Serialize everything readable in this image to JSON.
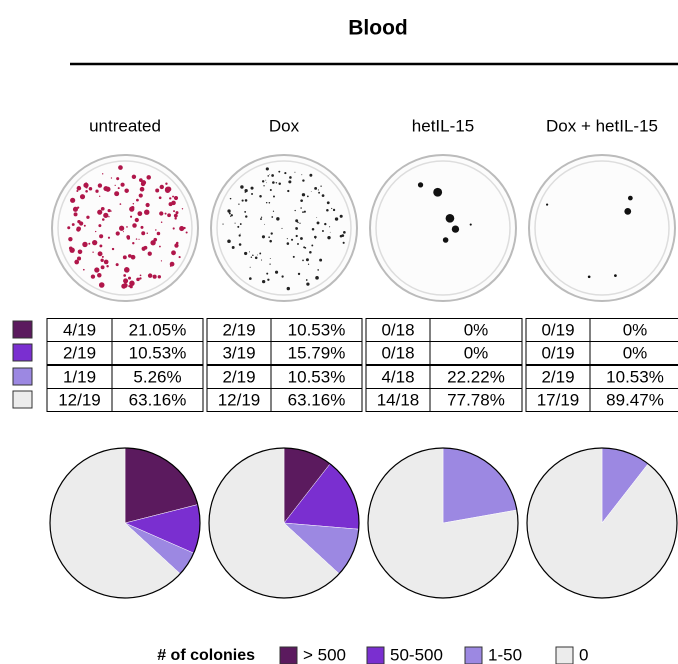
{
  "title": "Blood",
  "legend": {
    "title": "# of colonies",
    "categories": [
      "> 500",
      "50-500",
      "1-50",
      "0"
    ],
    "colors": [
      "#5b1a5e",
      "#7a2fd0",
      "#9c88e2",
      "#ececec"
    ]
  },
  "chart_data": [
    {
      "type": "pie",
      "title": "untreated",
      "counts": [
        "4/19",
        "2/19",
        "1/19",
        "12/19"
      ],
      "values": [
        21.05,
        10.53,
        5.26,
        63.16
      ],
      "value_labels": [
        "21.05%",
        "10.53%",
        "5.26%",
        "63.16%"
      ]
    },
    {
      "type": "pie",
      "title": "Dox",
      "counts": [
        "2/19",
        "3/19",
        "2/19",
        "12/19"
      ],
      "values": [
        10.53,
        15.79,
        10.53,
        63.16
      ],
      "value_labels": [
        "10.53%",
        "15.79%",
        "10.53%",
        "63.16%"
      ]
    },
    {
      "type": "pie",
      "title": "hetIL-15",
      "counts": [
        "0/18",
        "0/18",
        "4/18",
        "14/18"
      ],
      "values": [
        0,
        0,
        22.22,
        77.78
      ],
      "value_labels": [
        "0%",
        "0%",
        "22.22%",
        "77.78%"
      ]
    },
    {
      "type": "pie",
      "title": "Dox + hetIL-15",
      "counts": [
        "0/19",
        "0/19",
        "2/19",
        "17/19"
      ],
      "values": [
        0,
        0,
        10.53,
        89.47
      ],
      "value_labels": [
        "0%",
        "0%",
        "10.53%",
        "89.47%"
      ]
    }
  ]
}
